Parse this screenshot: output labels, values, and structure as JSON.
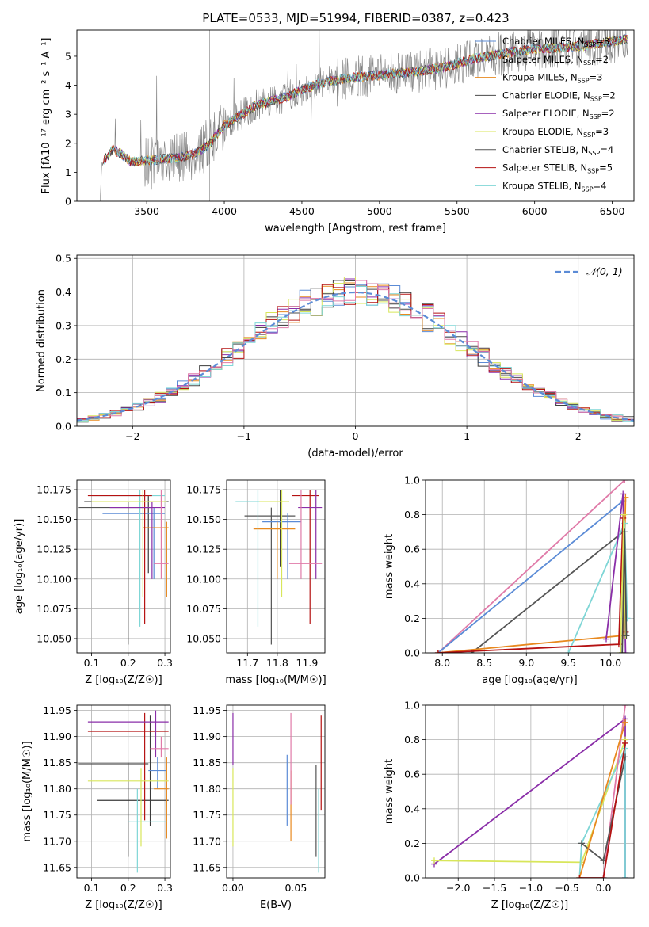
{
  "figure_title": "PLATE=0533, MJD=51994, FIBERID=0387, z=0.423",
  "palette": {
    "Chabrier MILES": "#5b8bd6",
    "Salpeter MILES": "#3a3a3a",
    "Kroupa MILES": "#e8891f",
    "Chabrier ELODIE": "#4a4a4a",
    "Salpeter ELODIE": "#8a2ea8",
    "Kroupa ELODIE": "#d8e65a",
    "Chabrier STELIB": "#555555",
    "Salpeter STELIB": "#b51212",
    "Kroupa STELIB": "#7fd6d6",
    "pink": "#e07aa8",
    "obs": "#808080",
    "gaussian": "#5b8bd6",
    "grid": "#b0b0b0"
  },
  "chart_data": [
    {
      "id": "spectrum",
      "type": "line",
      "title": "PLATE=0533, MJD=51994, FIBERID=0387, z=0.423",
      "xlabel": "wavelength [Angstrom, rest frame]",
      "ylabel": "Flux [fλ10⁻¹⁷ erg cm⁻² s⁻¹ A⁻¹]",
      "xlim": [
        3050,
        6640
      ],
      "ylim": [
        0,
        5.9
      ],
      "xticks": [
        3500,
        4000,
        4500,
        5000,
        5500,
        6000,
        6500
      ],
      "yticks": [
        0,
        1,
        2,
        3,
        4,
        5
      ],
      "grid": false,
      "legend_position": "top-right",
      "observed_anchors": [
        [
          3210,
          1.3
        ],
        [
          3280,
          1.8
        ],
        [
          3330,
          1.65
        ],
        [
          3400,
          1.35
        ],
        [
          3500,
          1.4
        ],
        [
          3700,
          1.5
        ],
        [
          3800,
          1.6
        ],
        [
          3900,
          1.95
        ],
        [
          4000,
          2.6
        ],
        [
          4200,
          3.3
        ],
        [
          4400,
          3.6
        ],
        [
          4600,
          4.05
        ],
        [
          4800,
          4.25
        ],
        [
          5000,
          4.35
        ],
        [
          5200,
          4.45
        ],
        [
          5400,
          4.6
        ],
        [
          5600,
          4.9
        ],
        [
          5800,
          5.1
        ],
        [
          6000,
          5.25
        ],
        [
          6300,
          5.35
        ],
        [
          6500,
          5.5
        ],
        [
          6600,
          5.6
        ]
      ],
      "legend": [
        {
          "label": "Chabrier MILES, N",
          "sub": "SSP",
          "tail": "=3",
          "color": "#5b8bd6"
        },
        {
          "label": "Salpeter MILES, N",
          "sub": "SSP",
          "tail": "=2",
          "color": "#3a3a3a"
        },
        {
          "label": "Kroupa MILES, N",
          "sub": "SSP",
          "tail": "=3",
          "color": "#e8891f"
        },
        {
          "label": "Chabrier ELODIE, N",
          "sub": "SSP",
          "tail": "=2",
          "color": "#4a4a4a"
        },
        {
          "label": "Salpeter ELODIE, N",
          "sub": "SSP",
          "tail": "=2",
          "color": "#8a2ea8"
        },
        {
          "label": "Kroupa ELODIE, N",
          "sub": "SSP",
          "tail": "=3",
          "color": "#d8e65a"
        },
        {
          "label": "Chabrier STELIB, N",
          "sub": "SSP",
          "tail": "=4",
          "color": "#555555"
        },
        {
          "label": "Salpeter STELIB, N",
          "sub": "SSP",
          "tail": "=5",
          "color": "#b51212"
        },
        {
          "label": "Kroupa STELIB, N",
          "sub": "SSP",
          "tail": "=4",
          "color": "#7fd6d6"
        }
      ]
    },
    {
      "id": "residuals",
      "type": "line",
      "xlabel": "(data-model)/error",
      "ylabel": "Normed distribution",
      "xlim": [
        -2.5,
        2.5
      ],
      "ylim": [
        0,
        0.51
      ],
      "xticks": [
        -2,
        -1,
        0,
        1,
        2
      ],
      "yticks": [
        0.0,
        0.1,
        0.2,
        0.3,
        0.4,
        0.5
      ],
      "grid": true,
      "legend_position": "top-right",
      "legend_label": "𝒩(0, 1)",
      "bin_width": 0.1
    },
    {
      "id": "age-vs-Z",
      "type": "scatter",
      "xlabel": "Z [log₁₀(Z/Z☉)]",
      "ylabel": "age  [log₁₀(age/yr)]",
      "xlim": [
        0.06,
        0.315
      ],
      "ylim": [
        10.038,
        10.183
      ],
      "xticks": [
        0.1,
        0.2,
        0.3
      ],
      "yticks": [
        10.05,
        10.075,
        10.1,
        10.125,
        10.15,
        10.175
      ],
      "grid": true,
      "errorbars": [
        {
          "x": 0.2,
          "xlo": 0.065,
          "xhi": 0.265,
          "y": 10.16,
          "ylo": 10.045,
          "yhi": 10.165,
          "color": "#555555"
        },
        {
          "x": 0.255,
          "xlo": 0.08,
          "xhi": 0.31,
          "y": 10.165,
          "ylo": 10.105,
          "yhi": 10.17,
          "color": "#3a3a3a"
        },
        {
          "x": 0.27,
          "xlo": 0.13,
          "xhi": 0.3,
          "y": 10.155,
          "ylo": 10.1,
          "yhi": 10.16,
          "color": "#5b8bd6"
        },
        {
          "x": 0.305,
          "xlo": 0.24,
          "xhi": 0.31,
          "y": 10.143,
          "ylo": 10.085,
          "yhi": 10.148,
          "color": "#e8891f"
        },
        {
          "x": 0.232,
          "xlo": 0.1,
          "xhi": 0.3,
          "y": 10.17,
          "ylo": 10.06,
          "yhi": 10.175,
          "color": "#7fd6d6"
        },
        {
          "x": 0.245,
          "xlo": 0.09,
          "xhi": 0.265,
          "y": 10.17,
          "ylo": 10.062,
          "yhi": 10.175,
          "color": "#b51212"
        },
        {
          "x": 0.24,
          "xlo": 0.1,
          "xhi": 0.305,
          "y": 10.165,
          "ylo": 10.085,
          "yhi": 10.175,
          "color": "#d8e65a"
        },
        {
          "x": 0.265,
          "xlo": 0.15,
          "xhi": 0.3,
          "y": 10.16,
          "ylo": 10.1,
          "yhi": 10.165,
          "color": "#8a2ea8"
        },
        {
          "x": 0.29,
          "xlo": 0.27,
          "xhi": 0.31,
          "y": 10.113,
          "ylo": 10.1,
          "yhi": 10.175,
          "color": "#e07aa8"
        }
      ]
    },
    {
      "id": "age-vs-mass",
      "type": "scatter",
      "xlabel": "mass [log₁₀(M/M☉)]",
      "ylabel": "",
      "xlim": [
        11.63,
        11.96
      ],
      "ylim": [
        10.038,
        10.183
      ],
      "xticks": [
        11.7,
        11.8,
        11.9
      ],
      "yticks": [
        10.05,
        10.075,
        10.1,
        10.125,
        10.15,
        10.175
      ],
      "grid": true,
      "errorbars": [
        {
          "x": 11.78,
          "xlo": 11.69,
          "xhi": 11.86,
          "y": 10.153,
          "ylo": 10.045,
          "yhi": 10.16,
          "color": "#555555"
        },
        {
          "x": 11.81,
          "xlo": 11.69,
          "xhi": 11.84,
          "y": 10.165,
          "ylo": 10.11,
          "yhi": 10.175,
          "color": "#3a3a3a"
        },
        {
          "x": 11.835,
          "xlo": 11.75,
          "xhi": 11.88,
          "y": 10.148,
          "ylo": 10.1,
          "yhi": 10.155,
          "color": "#5b8bd6"
        },
        {
          "x": 11.8,
          "xlo": 11.72,
          "xhi": 11.86,
          "y": 10.142,
          "ylo": 10.1,
          "yhi": 10.148,
          "color": "#e8891f"
        },
        {
          "x": 11.735,
          "xlo": 11.66,
          "xhi": 11.83,
          "y": 10.165,
          "ylo": 10.06,
          "yhi": 10.175,
          "color": "#7fd6d6"
        },
        {
          "x": 11.91,
          "xlo": 11.85,
          "xhi": 11.94,
          "y": 10.17,
          "ylo": 10.062,
          "yhi": 10.175,
          "color": "#b51212"
        },
        {
          "x": 11.815,
          "xlo": 11.74,
          "xhi": 11.84,
          "y": 10.165,
          "ylo": 10.085,
          "yhi": 10.175,
          "color": "#d8e65a"
        },
        {
          "x": 11.93,
          "xlo": 11.87,
          "xhi": 11.95,
          "y": 10.16,
          "ylo": 10.1,
          "yhi": 10.175,
          "color": "#8a2ea8"
        },
        {
          "x": 11.88,
          "xlo": 11.84,
          "xhi": 11.95,
          "y": 10.113,
          "ylo": 10.1,
          "yhi": 10.175,
          "color": "#e07aa8"
        }
      ]
    },
    {
      "id": "massweight-vs-age",
      "type": "line",
      "xlabel": "age  [log₁₀(age/yr)]",
      "ylabel": "mass weight",
      "xlim": [
        7.8,
        10.28
      ],
      "ylim": [
        0,
        1
      ],
      "xticks": [
        8.0,
        8.5,
        9.0,
        9.5,
        10.0
      ],
      "yticks": [
        0.0,
        0.2,
        0.4,
        0.6,
        0.8,
        1.0
      ],
      "grid": true,
      "series": [
        {
          "color": "#e07aa8",
          "x": [
            7.95,
            10.17
          ],
          "y": [
            0.0,
            1.0
          ]
        },
        {
          "color": "#5b8bd6",
          "x": [
            7.95,
            10.15
          ],
          "y": [
            0.0,
            0.88
          ]
        },
        {
          "color": "#555555",
          "x": [
            8.35,
            10.15
          ],
          "y": [
            0.0,
            0.7
          ]
        },
        {
          "color": "#e8891f",
          "x": [
            7.95,
            10.15,
            10.18
          ],
          "y": [
            0.0,
            0.1,
            0.9
          ]
        },
        {
          "color": "#7fd6d6",
          "x": [
            9.5,
            10.17,
            10.2
          ],
          "y": [
            0.0,
            0.75,
            0.2
          ]
        },
        {
          "color": "#8a2ea8",
          "x": [
            9.95,
            10.15,
            10.18
          ],
          "y": [
            0.08,
            0.92,
            0.0
          ]
        },
        {
          "color": "#b51212",
          "x": [
            7.95,
            10.1,
            10.15,
            10.18
          ],
          "y": [
            0.0,
            0.05,
            0.78,
            0.12
          ]
        },
        {
          "color": "#d8e65a",
          "x": [
            10.12,
            10.16,
            10.18
          ],
          "y": [
            0.0,
            0.8,
            0.1
          ]
        },
        {
          "color": "#4a4a4a",
          "x": [
            10.14,
            10.17,
            10.19
          ],
          "y": [
            0.0,
            0.7,
            0.1
          ]
        }
      ]
    },
    {
      "id": "mass-vs-Z",
      "type": "scatter",
      "xlabel": "Z [log₁₀(Z/Z☉)]",
      "ylabel": "mass [log₁₀(M/M☉)]",
      "xlim": [
        0.06,
        0.315
      ],
      "ylim": [
        11.63,
        11.96
      ],
      "xticks": [
        0.1,
        0.2,
        0.3
      ],
      "yticks": [
        11.65,
        11.7,
        11.75,
        11.8,
        11.85,
        11.9,
        11.95
      ],
      "grid": true,
      "errorbars": [
        {
          "x": 0.2,
          "xlo": 0.065,
          "xhi": 0.255,
          "y": 11.848,
          "ylo": 11.67,
          "yhi": 11.85,
          "color": "#555555"
        },
        {
          "x": 0.26,
          "xlo": 0.115,
          "xhi": 0.31,
          "y": 11.778,
          "ylo": 11.73,
          "yhi": 11.94,
          "color": "#3a3a3a"
        },
        {
          "x": 0.28,
          "xlo": 0.255,
          "xhi": 0.305,
          "y": 11.835,
          "ylo": 11.8,
          "yhi": 11.86,
          "color": "#5b8bd6"
        },
        {
          "x": 0.305,
          "xlo": 0.27,
          "xhi": 0.31,
          "y": 11.8,
          "ylo": 11.705,
          "yhi": 11.86,
          "color": "#e8891f"
        },
        {
          "x": 0.225,
          "xlo": 0.2,
          "xhi": 0.305,
          "y": 11.737,
          "ylo": 11.64,
          "yhi": 11.8,
          "color": "#7fd6d6"
        },
        {
          "x": 0.245,
          "xlo": 0.09,
          "xhi": 0.31,
          "y": 11.91,
          "ylo": 11.74,
          "yhi": 11.945,
          "color": "#b51212"
        },
        {
          "x": 0.235,
          "xlo": 0.09,
          "xhi": 0.31,
          "y": 11.815,
          "ylo": 11.69,
          "yhi": 11.84,
          "color": "#d8e65a"
        },
        {
          "x": 0.275,
          "xlo": 0.09,
          "xhi": 0.31,
          "y": 11.928,
          "ylo": 11.86,
          "yhi": 11.95,
          "color": "#8a2ea8"
        },
        {
          "x": 0.29,
          "xlo": 0.26,
          "xhi": 0.31,
          "y": 11.877,
          "ylo": 11.86,
          "yhi": 11.9,
          "color": "#e07aa8"
        }
      ]
    },
    {
      "id": "mass-vs-ebv",
      "type": "scatter",
      "xlabel": "E(B-V)",
      "ylabel": "",
      "xlim": [
        -0.005,
        0.073
      ],
      "ylim": [
        11.63,
        11.96
      ],
      "xticks": [
        0.0,
        0.05
      ],
      "xticklabels": [
        "0.00",
        "0.05"
      ],
      "yticks": [
        11.65,
        11.7,
        11.75,
        11.8,
        11.85,
        11.9,
        11.95
      ],
      "grid": true,
      "errorbars": [
        {
          "x": 0.0,
          "ylo": 11.845,
          "yhi": 11.945,
          "color": "#8a2ea8"
        },
        {
          "x": 0.0,
          "ylo": 11.69,
          "yhi": 11.84,
          "color": "#d8e65a"
        },
        {
          "x": 0.043,
          "ylo": 11.73,
          "yhi": 11.865,
          "color": "#5b8bd6"
        },
        {
          "x": 0.046,
          "ylo": 11.7,
          "yhi": 11.835,
          "color": "#e8891f"
        },
        {
          "x": 0.046,
          "ylo": 11.77,
          "yhi": 11.945,
          "color": "#e07aa8"
        },
        {
          "x": 0.066,
          "ylo": 11.67,
          "yhi": 11.845,
          "color": "#555555"
        },
        {
          "x": 0.068,
          "ylo": 11.64,
          "yhi": 11.8,
          "color": "#7fd6d6"
        },
        {
          "x": 0.07,
          "ylo": 11.76,
          "yhi": 11.94,
          "color": "#b51212"
        }
      ]
    },
    {
      "id": "massweight-vs-Z",
      "type": "line",
      "xlabel": "Z [log₁₀(Z/Z☉)]",
      "ylabel": "mass weight",
      "xlim": [
        -2.45,
        0.42
      ],
      "ylim": [
        0,
        1
      ],
      "xticks": [
        -2.0,
        -1.5,
        -1.0,
        -0.5,
        0.0
      ],
      "yticks": [
        0.0,
        0.2,
        0.4,
        0.6,
        0.8,
        1.0
      ],
      "grid": true,
      "series": [
        {
          "color": "#8a2ea8",
          "x": [
            -2.33,
            0.3,
            0.3
          ],
          "y": [
            0.08,
            0.92,
            0.0
          ]
        },
        {
          "color": "#d8e65a",
          "x": [
            -2.33,
            -0.3,
            0.3
          ],
          "y": [
            0.1,
            0.09,
            0.8
          ]
        },
        {
          "color": "#7fd6d6",
          "x": [
            -0.33,
            -0.3,
            0.3,
            0.3
          ],
          "y": [
            0.0,
            0.2,
            0.75,
            0.0
          ]
        },
        {
          "color": "#e07aa8",
          "x": [
            0.0,
            0.3
          ],
          "y": [
            0.0,
            1.0
          ]
        },
        {
          "color": "#555555",
          "x": [
            -0.3,
            0.0,
            0.3
          ],
          "y": [
            0.2,
            0.1,
            0.7
          ]
        },
        {
          "color": "#e8891f",
          "x": [
            -0.33,
            0.3
          ],
          "y": [
            0.0,
            0.9
          ]
        },
        {
          "color": "#b51212",
          "x": [
            -0.33,
            0.0,
            0.3
          ],
          "y": [
            0.0,
            0.0,
            0.78
          ]
        }
      ]
    }
  ]
}
